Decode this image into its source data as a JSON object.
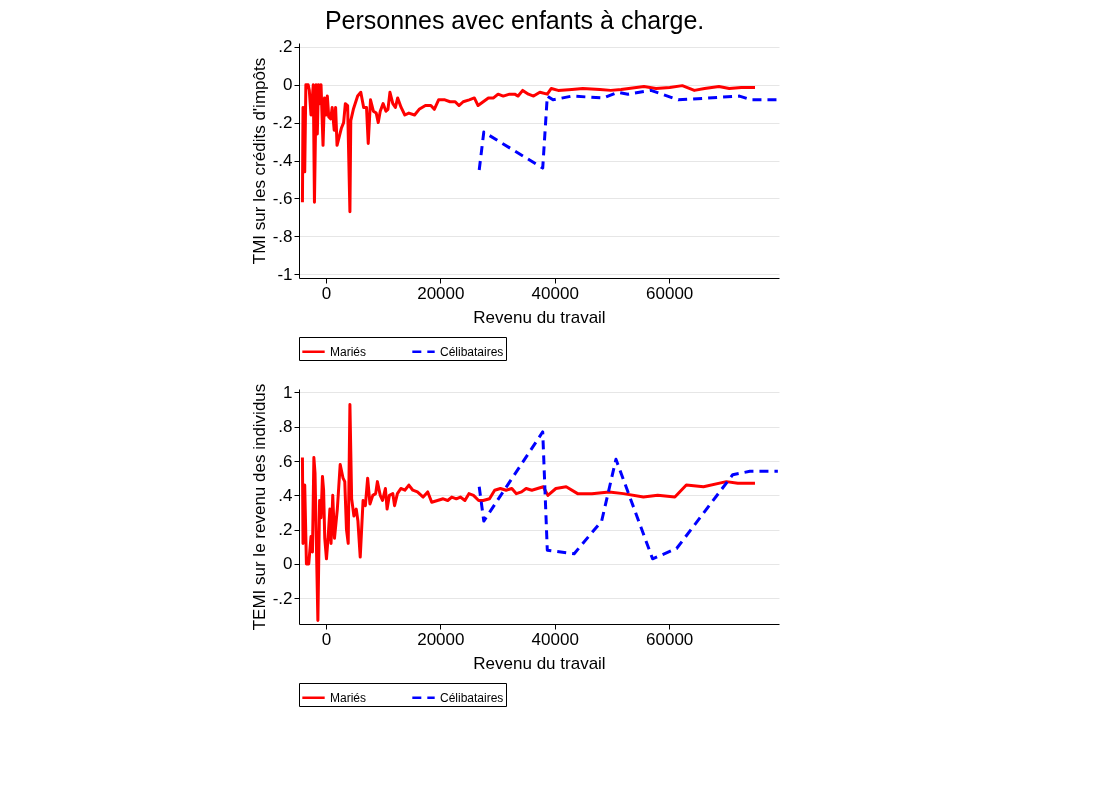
{
  "chart_data": [
    {
      "type": "line",
      "title": "Personnes avec enfants à charge.",
      "xlabel": "Revenu du travail",
      "ylabel": "TMI sur les crédits d'impôts",
      "xlim": [
        -4700,
        79200
      ],
      "ylim": [
        -1.02,
        0.22
      ],
      "xticks": [
        0,
        20000,
        40000,
        60000
      ],
      "yticks": [
        {
          "value": 0.2,
          "label": ".2"
        },
        0,
        {
          "value": -0.2,
          "label": "-.2"
        },
        {
          "value": -0.4,
          "label": "-.4"
        },
        {
          "value": -0.6,
          "label": "-.6"
        },
        {
          "value": -0.8,
          "label": "-.8"
        },
        -1
      ],
      "grid": "y",
      "legend": "bottom",
      "series": [
        {
          "name": "Mariés",
          "color": "#ff0000",
          "line_style": "solid",
          "x": [
            -4100,
            -4000,
            -3700,
            -3500,
            -3100,
            -2900,
            -2600,
            -2200,
            -2000,
            -1700,
            -1500,
            -1300,
            -1100,
            -850,
            -500,
            -250,
            50,
            250,
            500,
            850,
            1100,
            1450,
            1700,
            1950,
            2700,
            3100,
            3400,
            3800,
            4200,
            4350,
            4800,
            5550,
            6100,
            6600,
            7100,
            7400,
            7800,
            8300,
            8800,
            9150,
            9500,
            10000,
            10500,
            10850,
            11200,
            11700,
            12150,
            12550,
            13150,
            13800,
            14500,
            15500,
            16300,
            17400,
            18350,
            18950,
            19700,
            20800,
            21700,
            22600,
            23250,
            24000,
            25050,
            25950,
            26600,
            27500,
            28400,
            29300,
            30100,
            31000,
            32100,
            33000,
            33600,
            34400,
            35400,
            36300,
            37400,
            38700,
            39400,
            40600,
            43000,
            44900,
            47900,
            49800,
            51600,
            55600,
            57700,
            60100,
            62300,
            64400,
            66200,
            68700,
            70500,
            72600,
            75000
          ],
          "values": [
            -0.62,
            -0.12,
            -0.46,
            0,
            0,
            -0.03,
            -0.16,
            0,
            -0.62,
            0,
            -0.26,
            0,
            -0.1,
            0,
            -0.32,
            -0.07,
            -0.16,
            -0.06,
            -0.17,
            -0.18,
            -0.12,
            -0.24,
            -0.12,
            -0.32,
            -0.23,
            -0.2,
            -0.1,
            -0.11,
            -0.67,
            -0.19,
            -0.13,
            -0.06,
            -0.04,
            -0.12,
            -0.12,
            -0.31,
            -0.08,
            -0.14,
            -0.15,
            -0.2,
            -0.14,
            -0.1,
            -0.14,
            -0.13,
            -0.04,
            -0.1,
            -0.12,
            -0.07,
            -0.12,
            -0.16,
            -0.15,
            -0.16,
            -0.13,
            -0.11,
            -0.11,
            -0.13,
            -0.08,
            -0.08,
            -0.09,
            -0.09,
            -0.11,
            -0.09,
            -0.08,
            -0.07,
            -0.11,
            -0.09,
            -0.07,
            -0.07,
            -0.05,
            -0.06,
            -0.05,
            -0.05,
            -0.06,
            -0.03,
            -0.05,
            -0.06,
            -0.04,
            -0.05,
            -0.02,
            -0.03,
            -0.025,
            -0.02,
            -0.025,
            -0.03,
            -0.025,
            -0.01,
            -0.02,
            -0.015,
            -0.005,
            -0.03,
            -0.02,
            -0.01,
            -0.02,
            -0.015,
            -0.015
          ]
        },
        {
          "name": "Célibataires",
          "color": "#0000ff",
          "line_style": "dashed",
          "x": [
            26800,
            27600,
            37900,
            38700,
            39700,
            43000,
            48500,
            51000,
            52800,
            56800,
            61600,
            72300,
            74400,
            79000
          ],
          "values": [
            -0.45,
            -0.25,
            -0.44,
            -0.06,
            -0.08,
            -0.06,
            -0.07,
            -0.04,
            -0.05,
            -0.03,
            -0.08,
            -0.06,
            -0.08,
            -0.08
          ]
        }
      ]
    },
    {
      "type": "line",
      "xlabel": "Revenu du travail",
      "ylabel": "TEMI sur le revenu des individus",
      "xlim": [
        -4700,
        79200
      ],
      "ylim": [
        -0.35,
        1.02
      ],
      "xticks": [
        0,
        20000,
        40000,
        60000
      ],
      "yticks": [
        1,
        {
          "value": 0.8,
          "label": ".8"
        },
        {
          "value": 0.6,
          "label": ".6"
        },
        {
          "value": 0.4,
          "label": ".4"
        },
        {
          "value": 0.2,
          "label": ".2"
        },
        0,
        {
          "value": -0.2,
          "label": "-.2"
        }
      ],
      "grid": "y",
      "legend": "bottom",
      "series": [
        {
          "name": "Mariés",
          "color": "#ff0000",
          "line_style": "solid",
          "x": [
            -4100,
            -4000,
            -3700,
            -3400,
            -3000,
            -2600,
            -2350,
            -2100,
            -1900,
            -1400,
            -1100,
            -850,
            -600,
            -400,
            -200,
            100,
            400,
            700,
            900,
            1200,
            1500,
            2000,
            2500,
            3000,
            3300,
            3600,
            3900,
            4200,
            4500,
            4900,
            5300,
            5600,
            6000,
            6500,
            6900,
            7300,
            7700,
            8200,
            8700,
            9000,
            9500,
            9900,
            10400,
            10700,
            11100,
            11700,
            12000,
            12500,
            13100,
            13800,
            14500,
            15200,
            16000,
            17000,
            17800,
            18500,
            19500,
            20500,
            21300,
            22000,
            22800,
            23500,
            24300,
            25000,
            25800,
            26700,
            27500,
            28600,
            29500,
            30500,
            31500,
            32500,
            33300,
            34200,
            35000,
            36000,
            37000,
            38000,
            38800,
            40200,
            42000,
            44000,
            46500,
            49500,
            52000,
            55500,
            58000,
            61000,
            63000,
            66000,
            70000,
            72000,
            75000
          ],
          "values": [
            0.62,
            0.12,
            0.46,
            0,
            0,
            0.16,
            0.07,
            0.62,
            0.53,
            -0.33,
            0.37,
            0.27,
            0.51,
            0.43,
            0.15,
            0.03,
            0.16,
            0.32,
            0.12,
            0.4,
            0.15,
            0.32,
            0.58,
            0.5,
            0.48,
            0.2,
            0.12,
            0.93,
            0.38,
            0.28,
            0.32,
            0.25,
            0.04,
            0.37,
            0.34,
            0.5,
            0.35,
            0.4,
            0.41,
            0.48,
            0.4,
            0.37,
            0.44,
            0.32,
            0.4,
            0.41,
            0.34,
            0.41,
            0.44,
            0.43,
            0.46,
            0.43,
            0.42,
            0.39,
            0.42,
            0.36,
            0.37,
            0.38,
            0.37,
            0.39,
            0.38,
            0.39,
            0.37,
            0.41,
            0.4,
            0.37,
            0.37,
            0.38,
            0.43,
            0.44,
            0.43,
            0.44,
            0.41,
            0.42,
            0.44,
            0.43,
            0.44,
            0.45,
            0.4,
            0.44,
            0.45,
            0.41,
            0.41,
            0.42,
            0.41,
            0.39,
            0.4,
            0.39,
            0.46,
            0.45,
            0.48,
            0.47,
            0.47
          ]
        },
        {
          "name": "Célibataires",
          "color": "#0000ff",
          "line_style": "dashed",
          "x": [
            26800,
            27600,
            37900,
            38700,
            43400,
            48200,
            50700,
            57100,
            61300,
            71100,
            74100,
            79000
          ],
          "values": [
            0.45,
            0.25,
            0.77,
            0.08,
            0.06,
            0.25,
            0.61,
            0.03,
            0.09,
            0.52,
            0.54,
            0.54
          ]
        }
      ]
    }
  ]
}
